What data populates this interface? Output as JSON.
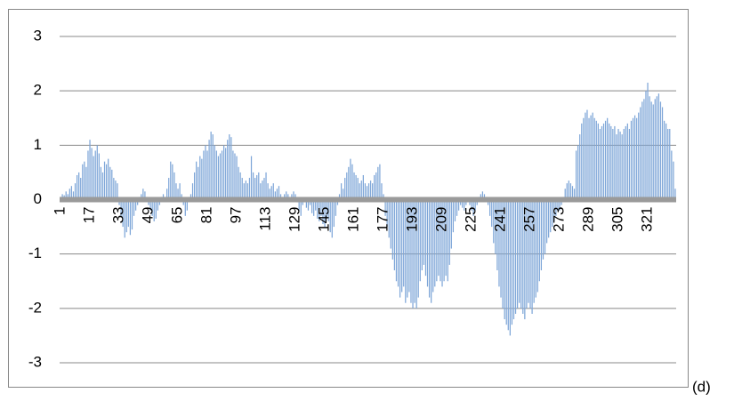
{
  "chart_data": {
    "type": "bar",
    "annotation": "(d)",
    "color": "#7ea6d8",
    "grid": true,
    "ylim": [
      -3,
      3
    ],
    "yticks": [
      -3,
      -2,
      -1,
      0,
      1,
      2,
      3
    ],
    "categories": [
      "1",
      null,
      null,
      null,
      null,
      null,
      null,
      null,
      null,
      null,
      null,
      null,
      null,
      null,
      null,
      null,
      "17",
      null,
      null,
      null,
      null,
      null,
      null,
      null,
      null,
      null,
      null,
      null,
      null,
      null,
      null,
      null,
      "33",
      null,
      null,
      null,
      null,
      null,
      null,
      null,
      null,
      null,
      null,
      null,
      null,
      null,
      null,
      null,
      "49",
      null,
      null,
      null,
      null,
      null,
      null,
      null,
      null,
      null,
      null,
      null,
      null,
      null,
      null,
      null,
      "65",
      null,
      null,
      null,
      null,
      null,
      null,
      null,
      null,
      null,
      null,
      null,
      null,
      null,
      null,
      null,
      "81",
      null,
      null,
      null,
      null,
      null,
      null,
      null,
      null,
      null,
      null,
      null,
      null,
      null,
      null,
      null,
      "97",
      null,
      null,
      null,
      null,
      null,
      null,
      null,
      null,
      null,
      null,
      null,
      null,
      null,
      null,
      null,
      "113",
      null,
      null,
      null,
      null,
      null,
      null,
      null,
      null,
      null,
      null,
      null,
      null,
      null,
      null,
      null,
      "129",
      null,
      null,
      null,
      null,
      null,
      null,
      null,
      null,
      null,
      null,
      null,
      null,
      null,
      null,
      null,
      "145",
      null,
      null,
      null,
      null,
      null,
      null,
      null,
      null,
      null,
      null,
      null,
      null,
      null,
      null,
      null,
      "161",
      null,
      null,
      null,
      null,
      null,
      null,
      null,
      null,
      null,
      null,
      null,
      null,
      null,
      null,
      null,
      "177",
      null,
      null,
      null,
      null,
      null,
      null,
      null,
      null,
      null,
      null,
      null,
      null,
      null,
      null,
      null,
      "193",
      null,
      null,
      null,
      null,
      null,
      null,
      null,
      null,
      null,
      null,
      null,
      null,
      null,
      null,
      null,
      "209",
      null,
      null,
      null,
      null,
      null,
      null,
      null,
      null,
      null,
      null,
      null,
      null,
      null,
      null,
      null,
      "225",
      null,
      null,
      null,
      null,
      null,
      null,
      null,
      null,
      null,
      null,
      null,
      null,
      null,
      null,
      null,
      "241",
      null,
      null,
      null,
      null,
      null,
      null,
      null,
      null,
      null,
      null,
      null,
      null,
      null,
      null,
      null,
      "257",
      null,
      null,
      null,
      null,
      null,
      null,
      null,
      null,
      null,
      null,
      null,
      null,
      null,
      null,
      null,
      "273",
      null,
      null,
      null,
      null,
      null,
      null,
      null,
      null,
      null,
      null,
      null,
      null,
      null,
      null,
      null,
      "289",
      null,
      null,
      null,
      null,
      null,
      null,
      null,
      null,
      null,
      null,
      null,
      null,
      null,
      null,
      null,
      "305",
      null,
      null,
      null,
      null,
      null,
      null,
      null,
      null,
      null,
      null,
      null,
      null,
      null,
      null,
      null,
      "321",
      null,
      null,
      null,
      null,
      null,
      null,
      null,
      null,
      null,
      null,
      null,
      null,
      null,
      null,
      null
    ],
    "values": [
      0.05,
      0.1,
      0.08,
      0.15,
      0.1,
      0.2,
      0.25,
      0.15,
      0.3,
      0.45,
      0.5,
      0.4,
      0.65,
      0.7,
      0.6,
      0.9,
      1.1,
      0.95,
      0.8,
      0.9,
      1.0,
      0.85,
      0.6,
      0.5,
      0.7,
      0.65,
      0.75,
      0.6,
      0.55,
      0.4,
      0.35,
      0.3,
      -0.1,
      -0.3,
      -0.5,
      -0.7,
      -0.6,
      -0.5,
      -0.65,
      -0.55,
      -0.3,
      -0.2,
      -0.1,
      0.05,
      0.1,
      0.2,
      0.15,
      0.05,
      -0.1,
      -0.2,
      -0.3,
      -0.4,
      -0.35,
      -0.2,
      -0.1,
      0.05,
      0.1,
      0.05,
      0.2,
      0.4,
      0.7,
      0.65,
      0.5,
      0.3,
      0.2,
      0.3,
      0.1,
      -0.1,
      -0.3,
      -0.2,
      0.05,
      0.1,
      0.3,
      0.5,
      0.7,
      0.6,
      0.8,
      0.75,
      0.9,
      1.0,
      0.9,
      1.1,
      1.25,
      1.2,
      1.0,
      0.9,
      0.8,
      0.85,
      0.9,
      1.0,
      0.95,
      1.1,
      1.2,
      1.15,
      0.9,
      0.85,
      0.8,
      0.6,
      0.5,
      0.4,
      0.3,
      0.35,
      0.3,
      0.4,
      0.8,
      0.5,
      0.4,
      0.45,
      0.5,
      0.3,
      0.35,
      0.4,
      0.5,
      0.3,
      0.2,
      0.25,
      0.3,
      0.15,
      0.2,
      0.25,
      0.1,
      0.05,
      0.1,
      0.15,
      0.1,
      0.05,
      0.1,
      0.15,
      0.1,
      -0.05,
      -0.2,
      -0.3,
      -0.1,
      -0.05,
      -0.15,
      -0.2,
      -0.1,
      -0.25,
      -0.3,
      -0.2,
      -0.35,
      -0.4,
      -0.3,
      -0.45,
      -0.5,
      -0.35,
      -0.4,
      -0.6,
      -0.7,
      -0.5,
      -0.3,
      -0.1,
      0.1,
      0.3,
      0.2,
      0.4,
      0.5,
      0.6,
      0.75,
      0.65,
      0.5,
      0.45,
      0.4,
      0.3,
      0.35,
      0.45,
      0.3,
      0.25,
      0.3,
      0.35,
      0.3,
      0.45,
      0.5,
      0.6,
      0.65,
      0.3,
      0.1,
      -0.3,
      -0.5,
      -0.7,
      -0.9,
      -1.1,
      -1.3,
      -1.5,
      -1.6,
      -1.8,
      -1.7,
      -1.6,
      -1.9,
      -1.8,
      -1.7,
      -1.9,
      -2.0,
      -1.9,
      -2.0,
      -1.8,
      -1.5,
      -1.3,
      -1.2,
      -1.4,
      -1.6,
      -1.8,
      -1.9,
      -1.7,
      -1.6,
      -1.5,
      -1.4,
      -1.5,
      -1.6,
      -1.5,
      -1.4,
      -1.5,
      -1.2,
      -0.9,
      -0.6,
      -0.4,
      -0.3,
      -0.2,
      -0.1,
      -0.15,
      -0.2,
      -0.1,
      -0.05,
      -0.1,
      -0.2,
      -0.3,
      -0.2,
      -0.1,
      0.05,
      0.1,
      0.15,
      0.1,
      0.05,
      -0.1,
      -0.3,
      -0.5,
      -0.8,
      -1.0,
      -1.3,
      -1.6,
      -1.8,
      -2.0,
      -2.2,
      -2.3,
      -2.4,
      -2.5,
      -2.3,
      -2.2,
      -2.1,
      -2.0,
      -1.9,
      -2.0,
      -2.1,
      -2.2,
      -2.0,
      -1.9,
      -2.0,
      -2.1,
      -1.9,
      -1.8,
      -1.7,
      -1.5,
      -1.3,
      -1.1,
      -1.0,
      -0.8,
      -0.7,
      -0.6,
      -0.5,
      -0.4,
      -0.3,
      -0.2,
      -0.2,
      -0.1,
      0.05,
      0.2,
      0.3,
      0.35,
      0.3,
      0.25,
      0.2,
      0.9,
      1.0,
      1.2,
      1.4,
      1.5,
      1.6,
      1.65,
      1.5,
      1.55,
      1.6,
      1.5,
      1.45,
      1.4,
      1.3,
      1.35,
      1.4,
      1.45,
      1.5,
      1.4,
      1.35,
      1.3,
      1.35,
      1.2,
      1.3,
      1.25,
      1.2,
      1.3,
      1.35,
      1.4,
      1.3,
      1.45,
      1.5,
      1.55,
      1.5,
      1.6,
      1.7,
      1.8,
      1.85,
      2.0,
      2.15,
      1.9,
      1.8,
      1.75,
      1.85,
      1.9,
      1.95,
      1.8,
      1.7,
      1.45,
      1.4,
      1.3,
      1.3,
      0.9,
      0.7,
      0.2
    ]
  }
}
